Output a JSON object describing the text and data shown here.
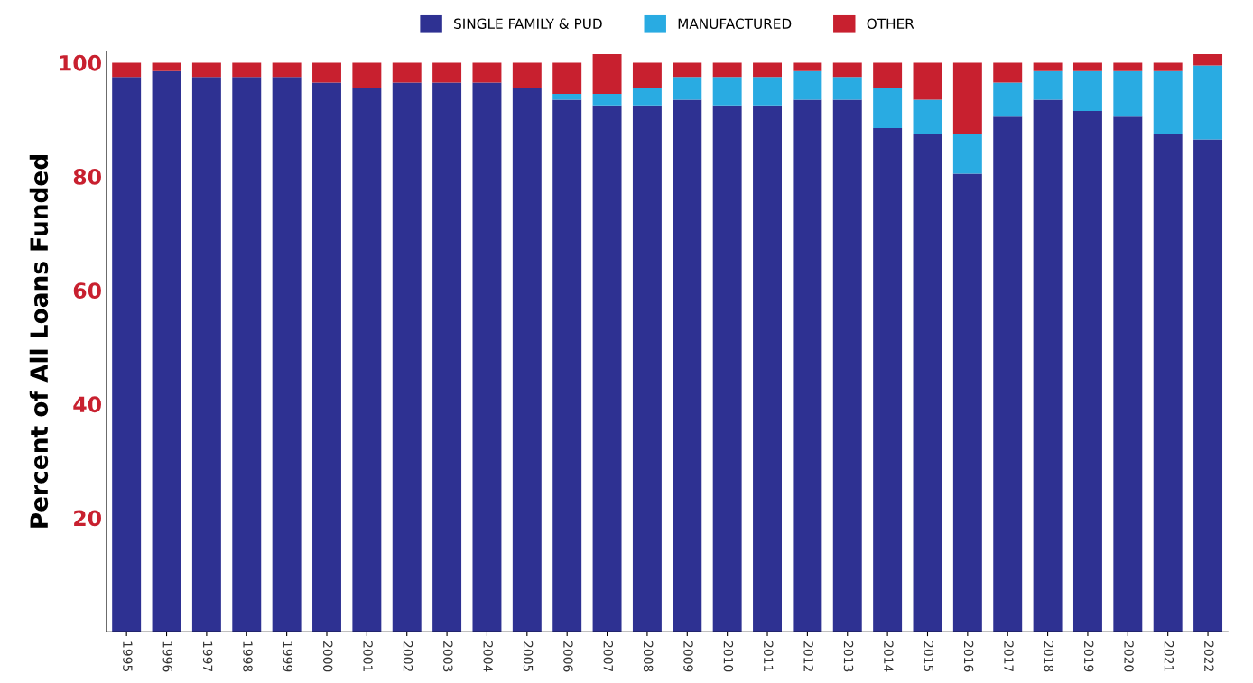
{
  "chart_data": {
    "type": "bar",
    "stacked": true,
    "ylabel": "Percent of All Loans Funded",
    "categories": [
      "1995",
      "1996",
      "1997",
      "1998",
      "1999",
      "2000",
      "2001",
      "2002",
      "2003",
      "2004",
      "2005",
      "2006",
      "2007",
      "2008",
      "2009",
      "2010",
      "2011",
      "2012",
      "2013",
      "2014",
      "2015",
      "2016",
      "2017",
      "2018",
      "2019",
      "2020",
      "2021",
      "2022"
    ],
    "series": [
      {
        "name": "SINGLE FAMILY & PUD",
        "color": "#2e3192",
        "values": [
          97.5,
          98.5,
          97.5,
          97.5,
          97.5,
          96.5,
          95.5,
          96.5,
          96.5,
          96.5,
          95.5,
          93.5,
          92.5,
          92.5,
          93.5,
          92.5,
          92.5,
          93.5,
          93.5,
          88.5,
          87.5,
          80.5,
          90.5,
          93.5,
          91.5,
          90.5,
          87.5,
          86.5
        ]
      },
      {
        "name": "MANUFACTURED",
        "color": "#29abe2",
        "values": [
          0,
          0,
          0,
          0,
          0,
          0,
          0,
          0,
          0,
          0,
          0,
          1,
          2,
          3,
          4,
          5,
          5,
          5,
          4,
          7,
          6,
          7,
          6,
          5,
          7,
          8,
          11,
          13
        ]
      },
      {
        "name": "OTHER",
        "color": "#c8202f",
        "values": [
          2.5,
          1.5,
          2.5,
          2.5,
          2.5,
          3.5,
          4.5,
          3.5,
          3.5,
          3.5,
          4.5,
          5.5,
          7,
          4.5,
          2.5,
          2.5,
          2.5,
          1.5,
          2.5,
          4.5,
          6.5,
          12.5,
          3.5,
          1.5,
          1.5,
          1.5,
          1.5,
          2
        ]
      }
    ],
    "ylim": [
      0,
      102
    ],
    "yticks": [
      20,
      40,
      60,
      80,
      100
    ],
    "legend": "top",
    "grid": false
  }
}
